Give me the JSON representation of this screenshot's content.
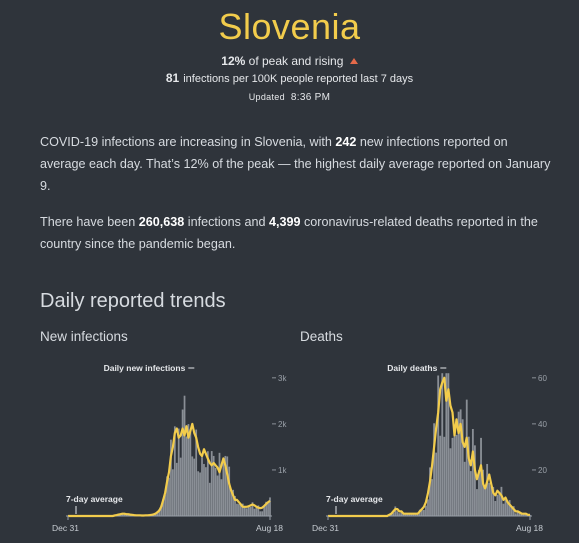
{
  "header": {
    "title": "Slovenia",
    "peak_value": "12%",
    "peak_text": "of peak and rising",
    "infections_value": "81",
    "infections_text": "infections per 100K people reported last 7 days",
    "updated_label": "Updated",
    "updated_time": "8:36 PM"
  },
  "summary": {
    "p1_a": "COVID-19 infections are increasing in Slovenia, with",
    "p1_num": "242",
    "p1_b": "new infections reported on average each day. That’s 12% of the peak — the highest daily average reported on January 9.",
    "p2_a": "There have been",
    "p2_num1": "260,638",
    "p2_b": "infections and",
    "p2_num2": "4,399",
    "p2_c": "coronavirus-related deaths reported in the country since the pandemic began."
  },
  "trends": {
    "section_title": "Daily reported trends",
    "infections_title": "New infections",
    "deaths_title": "Deaths"
  },
  "colors": {
    "background": "#2f343b",
    "accent": "#f2cc4c",
    "bars": "#8a8f96",
    "rising": "#e56a4a"
  },
  "chart_data": [
    {
      "type": "bar",
      "series_label": "Daily new infections",
      "average_label": "7-day average",
      "x_start": "Dec 31",
      "x_end": "Aug 18",
      "y_ticks": [
        {
          "value": 1000,
          "label": "1k"
        },
        {
          "value": 2000,
          "label": "2k"
        },
        {
          "value": 3000,
          "label": "3k"
        }
      ],
      "ylim": [
        0,
        3300
      ],
      "daily_peak": 3000,
      "average": [
        0,
        0,
        0,
        0,
        0,
        0,
        0,
        0,
        0,
        0,
        0,
        0,
        0,
        0,
        0,
        0,
        0,
        0,
        0,
        0,
        0,
        0,
        0,
        0,
        10,
        20,
        30,
        40,
        50,
        50,
        40,
        40,
        30,
        25,
        20,
        15,
        15,
        15,
        10,
        10,
        15,
        15,
        20,
        25,
        35,
        50,
        80,
        120,
        200,
        350,
        500,
        750,
        950,
        1300,
        1500,
        1800,
        1900,
        1700,
        1750,
        1900,
        1750,
        1950,
        1700,
        1850,
        2000,
        1800,
        1700,
        1500,
        1350,
        1300,
        1450,
        1350,
        1250,
        1150,
        1100,
        1150,
        1100,
        1050,
        950,
        1100,
        1250,
        1100,
        900,
        700,
        550,
        450,
        350,
        350,
        300,
        250,
        200,
        200,
        200,
        210,
        230,
        250,
        230,
        200,
        180,
        170,
        180,
        220,
        260,
        300,
        330
      ]
    },
    {
      "type": "bar",
      "series_label": "Daily deaths",
      "average_label": "7-day average",
      "x_start": "Dec 31",
      "x_end": "Aug 18",
      "y_ticks": [
        {
          "value": 20,
          "label": "20"
        },
        {
          "value": 40,
          "label": "40"
        },
        {
          "value": 60,
          "label": "60"
        }
      ],
      "ylim": [
        0,
        66
      ],
      "daily_peak": 62,
      "average": [
        0,
        0,
        0,
        0,
        0,
        0,
        0,
        0,
        0,
        0,
        0,
        0,
        0,
        0,
        0,
        0,
        0,
        0,
        0,
        0,
        0,
        0,
        0,
        0,
        0,
        0,
        0,
        0,
        0,
        0,
        0.5,
        1,
        2,
        3,
        3,
        2,
        2,
        1,
        1,
        1,
        1,
        1,
        1,
        1,
        1,
        2,
        3,
        4,
        6,
        10,
        15,
        22,
        30,
        38,
        45,
        55,
        58,
        60,
        50,
        55,
        48,
        45,
        35,
        42,
        36,
        40,
        32,
        30,
        34,
        25,
        22,
        28,
        20,
        16,
        19,
        22,
        14,
        12,
        15,
        18,
        14,
        10,
        9,
        11,
        10,
        9,
        7,
        8,
        6,
        5,
        4,
        3,
        2,
        2,
        1.5,
        1,
        1,
        1,
        0.5,
        0.5
      ]
    }
  ]
}
